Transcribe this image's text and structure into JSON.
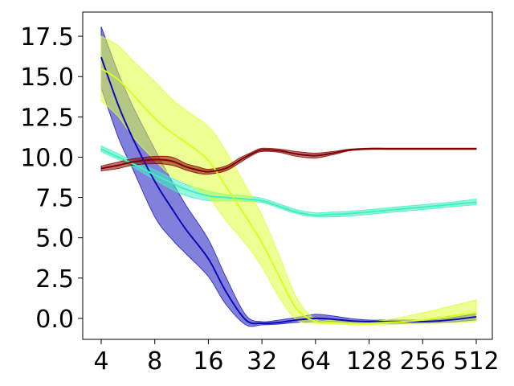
{
  "chart_data": {
    "type": "line",
    "x_scale": "log2",
    "x_ticks": [
      4,
      8,
      16,
      32,
      64,
      128,
      256,
      512
    ],
    "x_tick_labels": [
      "4",
      "8",
      "16",
      "32",
      "64",
      "128",
      "256",
      "512"
    ],
    "y_ticks": [
      0.0,
      2.5,
      5.0,
      7.5,
      10.0,
      12.5,
      15.0,
      17.5
    ],
    "y_tick_labels": [
      "0.0",
      "2.5",
      "5.0",
      "7.5",
      "10.0",
      "12.5",
      "15.0",
      "17.5"
    ],
    "ylim": [
      -1.3,
      19.0
    ],
    "grid": false,
    "legend": "none",
    "series": [
      {
        "color": "#0a0ab8",
        "band_color": "#1a1abf",
        "x": [
          4,
          5,
          6,
          8,
          10,
          12,
          16,
          20,
          26,
          32,
          40,
          50,
          64,
          80,
          100,
          128,
          160,
          200,
          256,
          320,
          400,
          512
        ],
        "y": [
          16.2,
          13.2,
          11.2,
          8.5,
          6.8,
          5.5,
          3.7,
          1.7,
          -0.1,
          -0.3,
          -0.25,
          -0.1,
          0.0,
          -0.05,
          -0.15,
          -0.2,
          -0.2,
          -0.2,
          -0.2,
          -0.15,
          -0.05,
          0.1
        ],
        "lower": [
          14.3,
          11.2,
          9.3,
          6.3,
          4.9,
          4.0,
          2.6,
          0.9,
          -0.4,
          -0.4,
          -0.35,
          -0.25,
          -0.2,
          -0.2,
          -0.25,
          -0.3,
          -0.3,
          -0.3,
          -0.3,
          -0.25,
          -0.2,
          -0.1
        ],
        "upper": [
          18.1,
          15.2,
          13.2,
          10.5,
          8.5,
          7.0,
          4.9,
          2.6,
          0.2,
          -0.2,
          -0.1,
          0.05,
          0.25,
          0.15,
          0.0,
          -0.1,
          -0.1,
          -0.1,
          -0.1,
          -0.05,
          0.1,
          0.3
        ]
      },
      {
        "color": "#40f0c0",
        "band_color": "#40f0c0",
        "x": [
          4,
          5,
          6,
          8,
          10,
          12,
          16,
          20,
          26,
          32,
          40,
          50,
          64,
          80,
          100,
          128,
          160,
          200,
          256,
          320,
          400,
          512
        ],
        "y": [
          10.5,
          10.0,
          9.6,
          8.9,
          8.4,
          8.0,
          7.6,
          7.5,
          7.4,
          7.3,
          6.95,
          6.6,
          6.4,
          6.45,
          6.5,
          6.6,
          6.7,
          6.8,
          6.9,
          7.0,
          7.1,
          7.2
        ],
        "lower": [
          10.35,
          9.85,
          9.4,
          8.6,
          8.0,
          7.6,
          7.3,
          7.3,
          7.25,
          7.2,
          6.85,
          6.5,
          6.3,
          6.3,
          6.35,
          6.45,
          6.55,
          6.65,
          6.75,
          6.85,
          6.95,
          7.05
        ],
        "upper": [
          10.7,
          10.2,
          9.8,
          9.2,
          8.7,
          8.3,
          7.9,
          7.7,
          7.6,
          7.45,
          7.1,
          6.75,
          6.55,
          6.6,
          6.65,
          6.75,
          6.85,
          6.95,
          7.05,
          7.15,
          7.25,
          7.4
        ]
      },
      {
        "color": "#d8ff20",
        "band_color": "#dfff3a",
        "x": [
          4,
          5,
          6,
          8,
          10,
          12,
          16,
          20,
          26,
          32,
          40,
          50,
          64,
          80,
          100,
          128,
          160,
          200,
          256,
          320,
          400,
          512
        ],
        "y": [
          15.5,
          14.8,
          13.9,
          12.4,
          11.5,
          10.9,
          9.8,
          8.2,
          6.3,
          4.7,
          2.6,
          0.6,
          -0.2,
          -0.25,
          -0.3,
          -0.3,
          -0.25,
          -0.2,
          -0.1,
          0.05,
          0.2,
          0.35
        ],
        "lower": [
          13.5,
          12.5,
          11.3,
          9.8,
          8.8,
          8.4,
          7.5,
          6.1,
          4.6,
          3.2,
          1.3,
          -0.1,
          -0.3,
          -0.35,
          -0.4,
          -0.4,
          -0.4,
          -0.35,
          -0.3,
          -0.3,
          -0.25,
          -0.2
        ],
        "upper": [
          17.5,
          16.9,
          16.0,
          14.7,
          13.6,
          12.9,
          11.9,
          10.4,
          8.2,
          6.4,
          3.9,
          1.3,
          -0.05,
          -0.1,
          -0.15,
          -0.2,
          -0.1,
          0.1,
          0.35,
          0.6,
          0.85,
          1.15
        ]
      },
      {
        "color": "#7b0000",
        "band_color": "#8b0000",
        "x": [
          4,
          5,
          6,
          8,
          10,
          12,
          14,
          16,
          20,
          24,
          28,
          32,
          40,
          50,
          64,
          80,
          100,
          128,
          160,
          200,
          256,
          320,
          400,
          512
        ],
        "y": [
          9.3,
          9.5,
          9.7,
          9.85,
          9.75,
          9.4,
          9.2,
          9.1,
          9.3,
          9.8,
          10.2,
          10.45,
          10.4,
          10.2,
          10.1,
          10.25,
          10.45,
          10.52,
          10.52,
          10.52,
          10.52,
          10.52,
          10.52,
          10.52
        ],
        "lower": [
          9.15,
          9.3,
          9.5,
          9.6,
          9.5,
          9.2,
          9.0,
          8.95,
          9.15,
          9.65,
          10.1,
          10.35,
          10.3,
          10.05,
          9.95,
          10.15,
          10.4,
          10.48,
          10.48,
          10.48,
          10.48,
          10.48,
          10.48,
          10.48
        ],
        "upper": [
          9.45,
          9.7,
          9.9,
          10.05,
          10.0,
          9.6,
          9.4,
          9.25,
          9.45,
          9.95,
          10.3,
          10.55,
          10.5,
          10.35,
          10.25,
          10.35,
          10.5,
          10.56,
          10.56,
          10.56,
          10.56,
          10.56,
          10.56,
          10.56
        ]
      }
    ]
  }
}
